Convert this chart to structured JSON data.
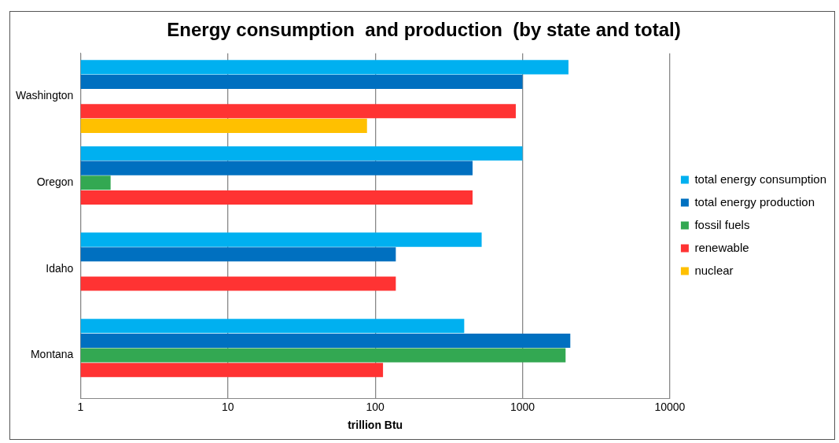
{
  "chart_data": {
    "type": "bar",
    "orientation": "horizontal",
    "title": "Energy consumption  and production  (by state and total)",
    "xlabel": "trillion Btu",
    "categories": [
      "Washington",
      "Oregon",
      "Idaho",
      "Montana"
    ],
    "series": [
      {
        "name": "total energy consumption",
        "color": "#00b0f0",
        "values": [
          2050,
          1000,
          528,
          402
        ]
      },
      {
        "name": "total energy production",
        "color": "#0070c0",
        "values": [
          1000,
          458,
          138,
          2110
        ]
      },
      {
        "name": "fossil fuels",
        "color": "#33a852",
        "values": [
          null,
          1.6,
          null,
          1960
        ]
      },
      {
        "name": "renewable",
        "color": "#ff3333",
        "values": [
          900,
          458,
          138,
          113
        ]
      },
      {
        "name": "nuclear",
        "color": "#ffc000",
        "values": [
          88,
          null,
          null,
          null
        ]
      }
    ],
    "log": "x",
    "xlim": [
      1,
      10000
    ],
    "xticks": [
      1,
      10,
      100,
      1000,
      10000
    ],
    "grid": "x",
    "legend": "right"
  }
}
